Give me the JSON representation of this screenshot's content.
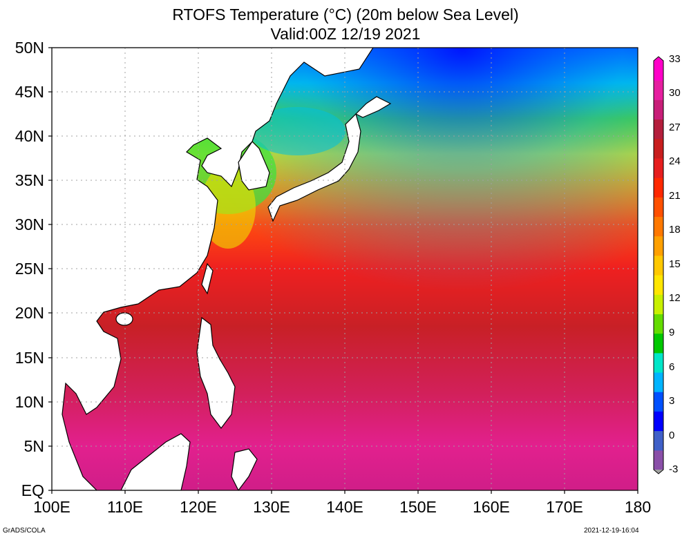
{
  "title": {
    "line1": "RTOFS Temperature (°C) (20m below Sea Level)",
    "line2": "Valid:00Z 12/19 2021"
  },
  "map": {
    "lon_range": [
      100,
      180
    ],
    "lat_range": [
      0,
      50
    ],
    "lat_labels": [
      "50N",
      "45N",
      "40N",
      "35N",
      "30N",
      "25N",
      "20N",
      "15N",
      "10N",
      "5N",
      "EQ"
    ],
    "lon_labels": [
      "100E",
      "110E",
      "120E",
      "130E",
      "140E",
      "150E",
      "160E",
      "170E",
      "180"
    ],
    "grid": "dotted"
  },
  "colorbar": {
    "labels": [
      "33",
      "30",
      "27",
      "24",
      "21",
      "18",
      "15",
      "12",
      "9",
      "6",
      "3",
      "0",
      "-3"
    ],
    "colors": [
      "#8a4fa8",
      "#4060c8",
      "#0000ff",
      "#0050ff",
      "#00b4ff",
      "#00e6c8",
      "#00c800",
      "#64dc00",
      "#c8f000",
      "#ffe600",
      "#ffc800",
      "#ffa000",
      "#ff7800",
      "#ff5000",
      "#ff2800",
      "#e61e1e",
      "#c81e1e",
      "#b41e3c",
      "#c81e78",
      "#e61ea0",
      "#ff00c8"
    ]
  },
  "footer": {
    "left": "GrADS/COLA",
    "right": "2021-12-19-16:04"
  }
}
